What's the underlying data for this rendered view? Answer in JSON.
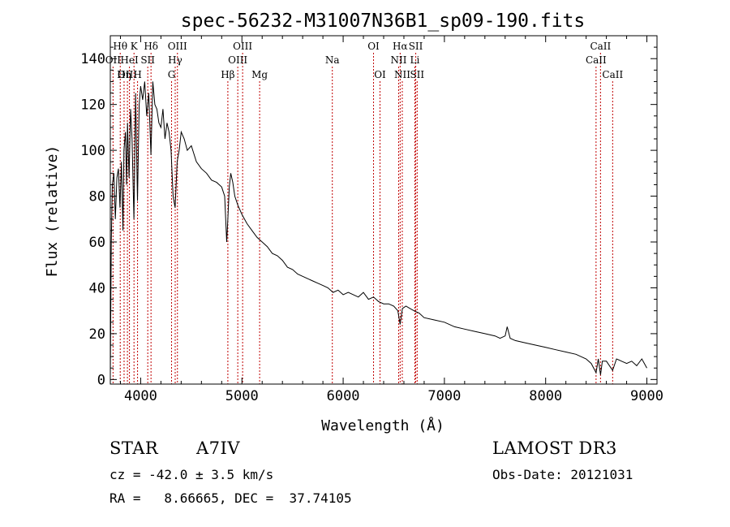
{
  "chart_data": {
    "type": "line",
    "title": "spec-56232-M31007N36B1_sp09-190.fits",
    "xlabel": "Wavelength (Å)",
    "ylabel": "Flux (relative)",
    "xlim": [
      3700,
      9100
    ],
    "ylim": [
      -2,
      150
    ],
    "xticks": [
      4000,
      5000,
      6000,
      7000,
      8000,
      9000
    ],
    "yticks": [
      0,
      20,
      40,
      60,
      80,
      100,
      120,
      140
    ],
    "spectrum": {
      "x": [
        3700,
        3710,
        3720,
        3735,
        3750,
        3765,
        3780,
        3795,
        3810,
        3825,
        3835,
        3850,
        3860,
        3870,
        3885,
        3900,
        3915,
        3933,
        3950,
        3968,
        3985,
        4000,
        4020,
        4040,
        4060,
        4080,
        4101,
        4120,
        4140,
        4160,
        4180,
        4200,
        4220,
        4240,
        4260,
        4280,
        4300,
        4320,
        4340,
        4360,
        4380,
        4400,
        4430,
        4460,
        4500,
        4550,
        4600,
        4650,
        4700,
        4750,
        4800,
        4830,
        4850,
        4861,
        4875,
        4890,
        4910,
        4930,
        4960,
        5000,
        5050,
        5100,
        5150,
        5200,
        5250,
        5300,
        5350,
        5400,
        5450,
        5500,
        5550,
        5600,
        5650,
        5700,
        5750,
        5800,
        5850,
        5900,
        5950,
        6000,
        6050,
        6100,
        6150,
        6200,
        6250,
        6300,
        6350,
        6400,
        6450,
        6500,
        6540,
        6563,
        6585,
        6620,
        6660,
        6700,
        6750,
        6800,
        6900,
        7000,
        7100,
        7200,
        7300,
        7400,
        7500,
        7550,
        7600,
        7620,
        7650,
        7700,
        7800,
        7900,
        8000,
        8100,
        8200,
        8300,
        8400,
        8450,
        8498,
        8520,
        8542,
        8560,
        8600,
        8662,
        8700,
        8750,
        8800,
        8850,
        8900,
        8950,
        9000
      ],
      "flux": [
        2,
        60,
        85,
        90,
        70,
        88,
        92,
        75,
        95,
        65,
        100,
        108,
        85,
        112,
        88,
        118,
        105,
        70,
        125,
        78,
        120,
        128,
        122,
        130,
        115,
        125,
        98,
        130,
        120,
        118,
        112,
        110,
        118,
        105,
        112,
        108,
        100,
        80,
        75,
        95,
        100,
        108,
        105,
        100,
        102,
        95,
        92,
        90,
        87,
        86,
        84,
        80,
        60,
        70,
        84,
        90,
        86,
        80,
        76,
        72,
        68,
        65,
        62,
        60,
        58,
        55,
        54,
        52,
        49,
        48,
        46,
        45,
        44,
        43,
        42,
        41,
        40,
        38,
        39,
        37,
        38,
        37,
        36,
        38,
        35,
        36,
        34,
        33,
        33,
        32,
        30,
        24,
        31,
        32,
        31,
        30,
        29,
        27,
        26,
        25,
        23,
        22,
        21,
        20,
        19,
        18,
        19,
        23,
        18,
        17,
        16,
        15,
        14,
        13,
        12,
        11,
        9,
        7,
        3,
        9,
        2,
        8,
        8,
        4,
        9,
        8,
        7,
        8,
        6,
        9,
        5
      ]
    },
    "lines": [
      {
        "name": "Hθ",
        "wl": 3798,
        "row": 0
      },
      {
        "name": "OII",
        "wl": 3727,
        "row": 1
      },
      {
        "name": "OIII",
        "wl": 3869,
        "row": 2
      },
      {
        "name": "K",
        "wl": 3934,
        "row": 0
      },
      {
        "name": "HeI",
        "wl": 3889,
        "row": 1
      },
      {
        "name": "Hη",
        "wl": 3836,
        "row": 2
      },
      {
        "name": "Hδ",
        "wl": 4102,
        "row": 0
      },
      {
        "name": "SII",
        "wl": 4070,
        "row": 1
      },
      {
        "name": "H",
        "wl": 3969,
        "row": 2
      },
      {
        "name": "OIII",
        "wl": 4363,
        "row": 0
      },
      {
        "name": "Hγ",
        "wl": 4341,
        "row": 1
      },
      {
        "name": "G",
        "wl": 4305,
        "row": 2
      },
      {
        "name": "OIII",
        "wl": 5007,
        "row": 0
      },
      {
        "name": "OIII",
        "wl": 4959,
        "row": 1
      },
      {
        "name": "Hβ",
        "wl": 4861,
        "row": 2
      },
      {
        "name": "Mg",
        "wl": 5175,
        "row": 2
      },
      {
        "name": "Na",
        "wl": 5893,
        "row": 1
      },
      {
        "name": "OI",
        "wl": 6300,
        "row": 0
      },
      {
        "name": "OI",
        "wl": 6364,
        "row": 2
      },
      {
        "name": "Hα",
        "wl": 6563,
        "row": 0
      },
      {
        "name": "NII",
        "wl": 6548,
        "row": 1
      },
      {
        "name": "NII",
        "wl": 6584,
        "row": 2
      },
      {
        "name": "SII",
        "wl": 6717,
        "row": 0
      },
      {
        "name": "Li",
        "wl": 6708,
        "row": 1
      },
      {
        "name": "SII",
        "wl": 6731,
        "row": 2
      },
      {
        "name": "CaII",
        "wl": 8542,
        "row": 0
      },
      {
        "name": "CaII",
        "wl": 8498,
        "row": 1
      },
      {
        "name": "CaII",
        "wl": 8662,
        "row": 2
      }
    ]
  },
  "info": {
    "star_type": "STAR",
    "subclass": "A7IV",
    "survey": "LAMOST DR3",
    "cz": "cz = -42.0 ± 3.5 km/s",
    "obs_date": "Obs-Date: 20121031",
    "coords": "RA =   8.66665, DEC =  37.74105"
  },
  "colors": {
    "line_marker": "#c00000",
    "axis": "#000000"
  }
}
